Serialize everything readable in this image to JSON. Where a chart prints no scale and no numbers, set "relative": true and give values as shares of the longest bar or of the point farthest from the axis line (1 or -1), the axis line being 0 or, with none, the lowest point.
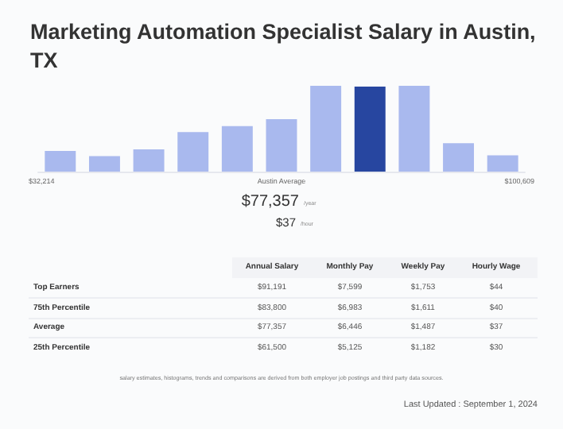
{
  "chart_data": [
    {
      "type": "bar",
      "title": "Marketing Automation Specialist Salary in Austin, TX",
      "relative": true,
      "categories": [
        null,
        null,
        null,
        null,
        null,
        null,
        null,
        null,
        null,
        null,
        null
      ],
      "values": [
        0.24,
        0.18,
        0.26,
        0.46,
        0.53,
        0.61,
        1,
        0.99,
        1,
        0.33,
        0.19
      ],
      "colors": [
        "#a9b9ee",
        "#a9b9ee",
        "#a9b9ee",
        "#a9b9ee",
        "#a9b9ee",
        "#a9b9ee",
        "#a9b9ee",
        "#2746a0",
        "#a9b9ee",
        "#a9b9ee",
        "#a9b9ee"
      ],
      "annotations": [
        "$32,214",
        "$100,609",
        "Austin Average",
        "$77,357",
        "/year",
        "$37",
        "/hour",
        "salary estimates, histograms, trends and comparisons are derived from both employer job postings and third party data sources.",
        "Last Updated : September 1, 2024"
      ]
    },
    {
      "type": "other",
      "annotations": [
        "Annual Salary",
        "Monthly Pay",
        "Weekly Pay",
        "Hourly Wage",
        "Top Earners",
        "$91,191",
        "$7,599",
        "$1,753",
        "$44",
        "75th Percentile",
        "$83,800",
        "$6,983",
        "$1,611",
        "$40",
        "Average",
        "$77,357",
        "$6,446",
        "$1,487",
        "$37",
        "25th Percentile",
        "$61,500",
        "$5,125",
        "$1,182",
        "$30"
      ]
    }
  ]
}
